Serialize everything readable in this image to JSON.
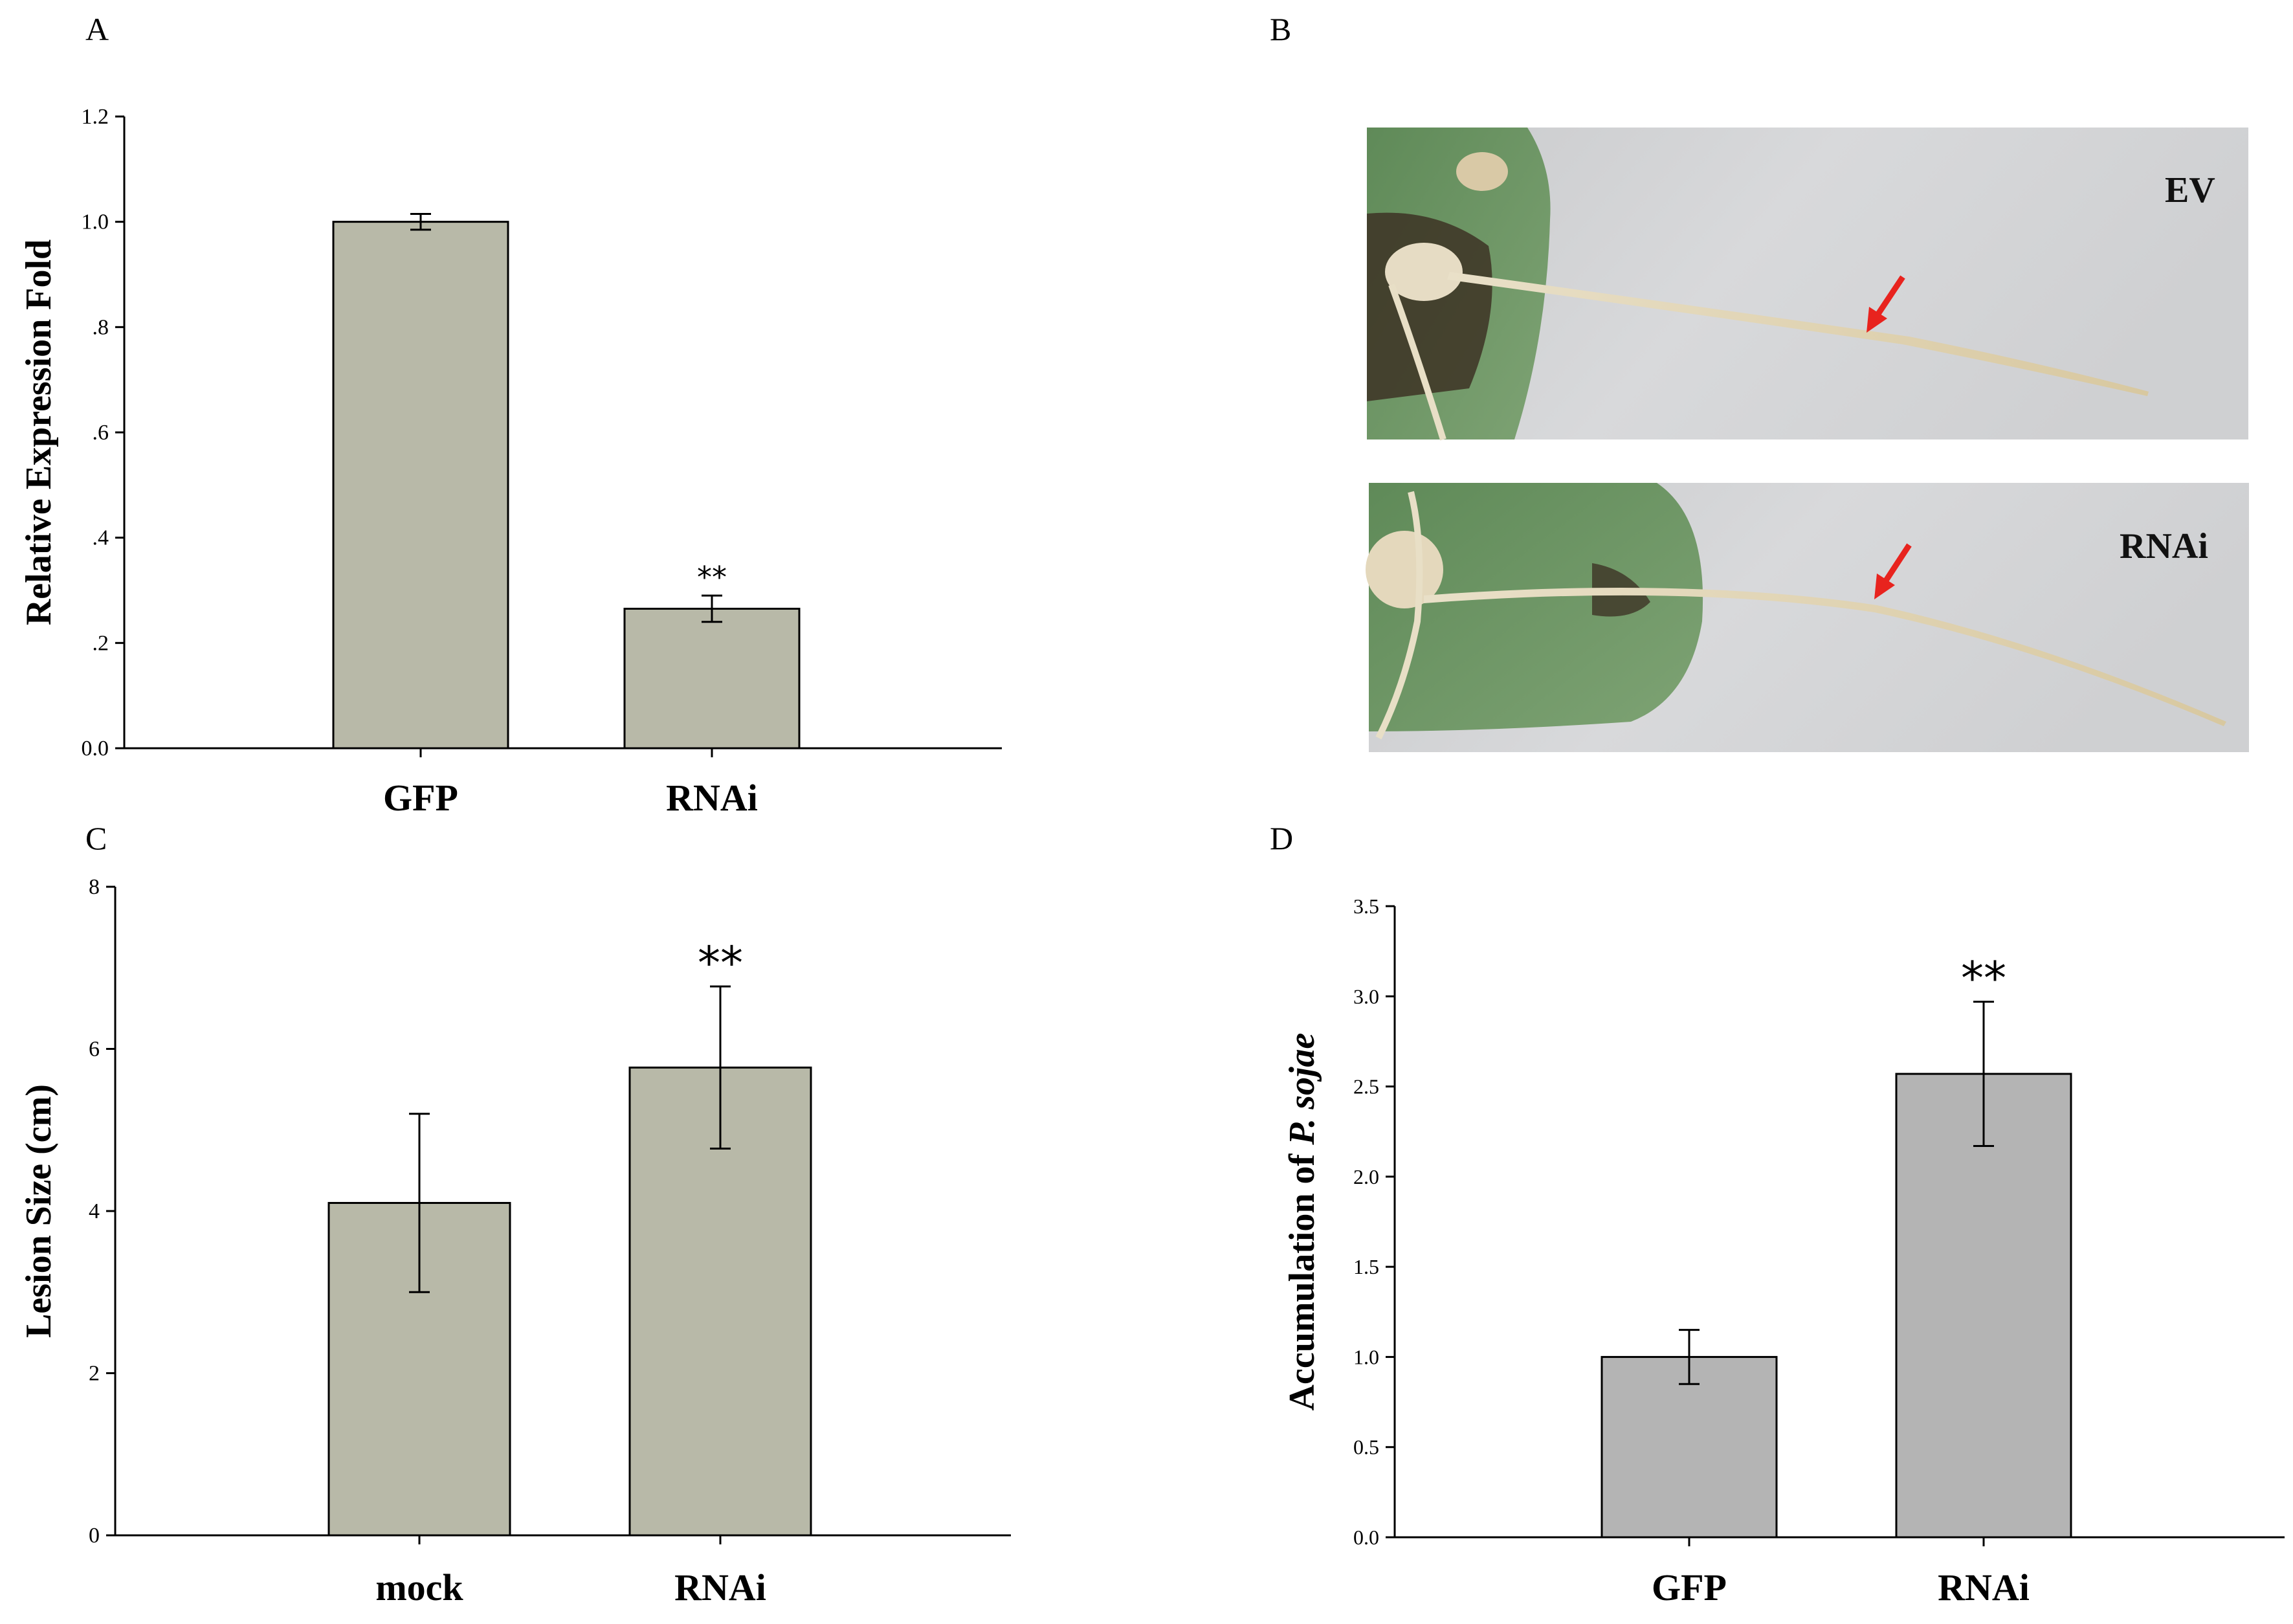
{
  "panels": {
    "a": "A",
    "b": "B",
    "c": "C",
    "d": "D"
  },
  "photos": {
    "top_label": "EV",
    "bottom_label": "RNAi"
  },
  "colors": {
    "bar_olive": "#b8b9a8",
    "bar_gray": "#b4b4b4",
    "arrow": "#e8231e"
  },
  "chart_data": [
    {
      "id": "A",
      "type": "bar",
      "categories": [
        "GFP",
        "RNAi"
      ],
      "values": [
        1.0,
        0.265
      ],
      "errors": [
        0.015,
        0.025
      ],
      "annotations": [
        "",
        "**"
      ],
      "ylabel": "Relative Expression Fold",
      "ylim": [
        0,
        1.2
      ],
      "yticks": [
        0,
        0.2,
        0.4,
        0.6,
        0.8,
        1.0,
        1.2
      ],
      "ytick_labels": [
        "0.0",
        ".2",
        ".4",
        ".6",
        ".8",
        "1.0",
        "1.2"
      ]
    },
    {
      "id": "C",
      "type": "bar",
      "categories": [
        "mock",
        "RNAi"
      ],
      "values": [
        4.1,
        5.77
      ],
      "errors": [
        1.1,
        1.0
      ],
      "annotations": [
        "",
        "**"
      ],
      "ylabel": "Lesion Size (cm)",
      "ylim": [
        0,
        8
      ],
      "yticks": [
        0,
        2,
        4,
        6,
        8
      ],
      "ytick_labels": [
        "0",
        "2",
        "4",
        "6",
        "8"
      ]
    },
    {
      "id": "D",
      "type": "bar",
      "categories": [
        "GFP",
        "RNAi"
      ],
      "values": [
        1.0,
        2.57
      ],
      "errors": [
        0.15,
        0.4
      ],
      "annotations": [
        "",
        "**"
      ],
      "ylabel_prefix": "Accumulation of ",
      "ylabel_italic": "P. sojae",
      "ylim": [
        0,
        3.5
      ],
      "yticks": [
        0,
        0.5,
        1.0,
        1.5,
        2.0,
        2.5,
        3.0,
        3.5
      ],
      "ytick_labels": [
        "0.0",
        "0.5",
        "1.0",
        "1.5",
        "2.0",
        "2.5",
        "3.0",
        "3.5"
      ]
    }
  ]
}
